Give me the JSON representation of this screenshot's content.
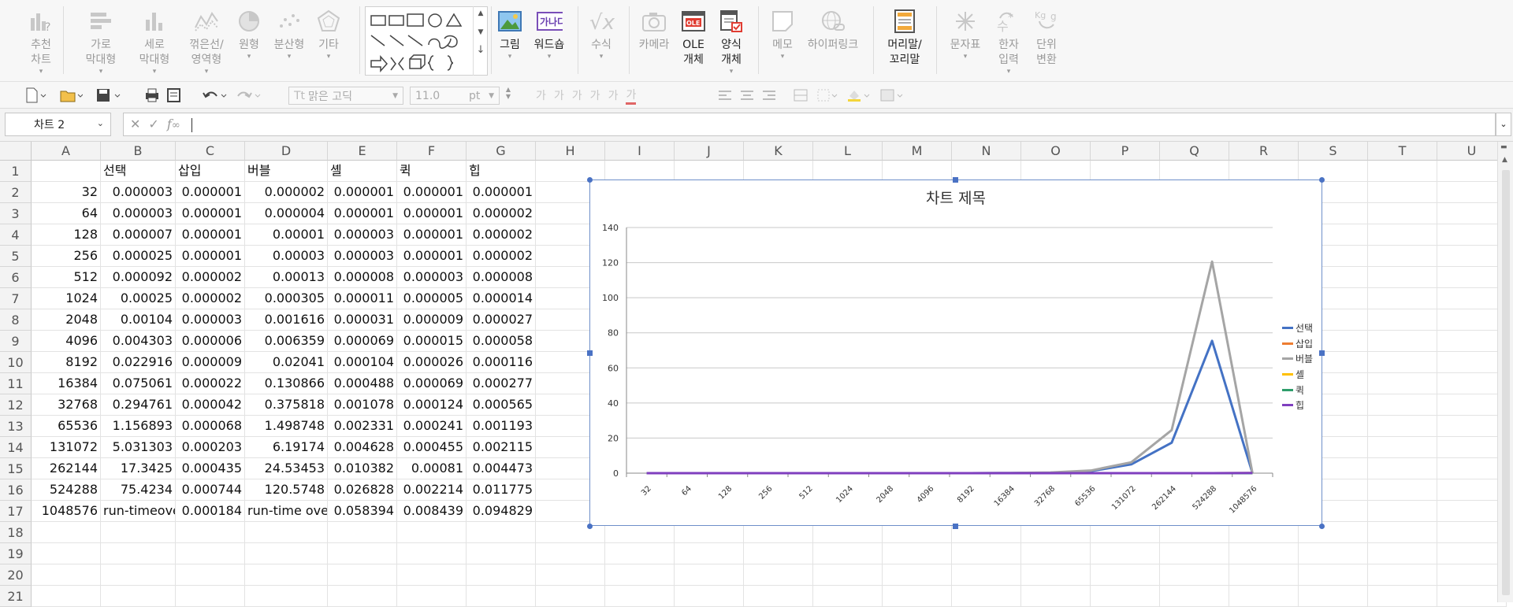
{
  "ribbon": {
    "items": [
      {
        "label": "추천\n차트",
        "icon": "recommended-chart-icon",
        "dropdown": true
      },
      {
        "label": "가로\n막대형",
        "icon": "horizontal-bar-chart-icon",
        "dropdown": true
      },
      {
        "label": "세로\n막대형",
        "icon": "vertical-bar-chart-icon",
        "dropdown": true
      },
      {
        "label": "꺾은선/\n영역형",
        "icon": "line-area-chart-icon",
        "dropdown": true
      },
      {
        "label": "원형",
        "icon": "pie-chart-icon",
        "dropdown": true
      },
      {
        "label": "분산형",
        "icon": "scatter-chart-icon",
        "dropdown": true
      },
      {
        "label": "기타",
        "icon": "other-chart-icon",
        "dropdown": true
      },
      {
        "label": "그림",
        "icon": "picture-icon",
        "dropdown": true
      },
      {
        "label": "워드숍",
        "icon": "wordart-icon",
        "dropdown": true
      },
      {
        "label": "수식",
        "icon": "equation-icon",
        "dropdown": true
      },
      {
        "label": "카메라",
        "icon": "camera-icon",
        "dropdown": false
      },
      {
        "label": "OLE\n개체",
        "icon": "ole-object-icon",
        "dropdown": false
      },
      {
        "label": "양식\n개체",
        "icon": "form-object-icon",
        "dropdown": true
      },
      {
        "label": "메모",
        "icon": "memo-icon",
        "dropdown": true
      },
      {
        "label": "하이퍼링크",
        "icon": "hyperlink-icon",
        "dropdown": false
      },
      {
        "label": "머리말/\n꼬리말",
        "icon": "header-footer-icon",
        "dropdown": false
      },
      {
        "label": "문자표",
        "icon": "symbol-icon",
        "dropdown": true
      },
      {
        "label": "한자\n입력",
        "icon": "hanja-input-icon",
        "dropdown": true
      },
      {
        "label": "단위\n변환",
        "icon": "unit-convert-icon",
        "dropdown": false
      }
    ],
    "ole_badge": "OLE",
    "wordart_badge": "가나다"
  },
  "toolbar": {
    "font_name": "맑은 고딕",
    "font_size": "11.0",
    "font_unit": "pt"
  },
  "formula_bar": {
    "name_box": "차트 2",
    "formula": ""
  },
  "columns": [
    "A",
    "B",
    "C",
    "D",
    "E",
    "F",
    "G",
    "H",
    "I",
    "J",
    "K",
    "L",
    "M",
    "N",
    "O",
    "P",
    "Q",
    "R",
    "S",
    "T",
    "U"
  ],
  "rows": [
    "1",
    "2",
    "3",
    "4",
    "5",
    "6",
    "7",
    "8",
    "9",
    "10",
    "11",
    "12",
    "13",
    "14",
    "15",
    "16",
    "17",
    "18",
    "19",
    "20",
    "21"
  ],
  "table": {
    "headers": [
      "",
      "선택",
      "삽입",
      "버블",
      "셸",
      "퀵",
      "힙"
    ],
    "data": [
      [
        "32",
        "0.000003",
        "0.000001",
        "0.000002",
        "0.000001",
        "0.000001",
        "0.000001"
      ],
      [
        "64",
        "0.000003",
        "0.000001",
        "0.000004",
        "0.000001",
        "0.000001",
        "0.000002"
      ],
      [
        "128",
        "0.000007",
        "0.000001",
        "0.00001",
        "0.000003",
        "0.000001",
        "0.000002"
      ],
      [
        "256",
        "0.000025",
        "0.000001",
        "0.00003",
        "0.000003",
        "0.000001",
        "0.000002"
      ],
      [
        "512",
        "0.000092",
        "0.000002",
        "0.00013",
        "0.000008",
        "0.000003",
        "0.000008"
      ],
      [
        "1024",
        "0.00025",
        "0.000002",
        "0.000305",
        "0.000011",
        "0.000005",
        "0.000014"
      ],
      [
        "2048",
        "0.00104",
        "0.000003",
        "0.001616",
        "0.000031",
        "0.000009",
        "0.000027"
      ],
      [
        "4096",
        "0.004303",
        "0.000006",
        "0.006359",
        "0.000069",
        "0.000015",
        "0.000058"
      ],
      [
        "8192",
        "0.022916",
        "0.000009",
        "0.02041",
        "0.000104",
        "0.000026",
        "0.000116"
      ],
      [
        "16384",
        "0.075061",
        "0.000022",
        "0.130866",
        "0.000488",
        "0.000069",
        "0.000277"
      ],
      [
        "32768",
        "0.294761",
        "0.000042",
        "0.375818",
        "0.001078",
        "0.000124",
        "0.000565"
      ],
      [
        "65536",
        "1.156893",
        "0.000068",
        "1.498748",
        "0.002331",
        "0.000241",
        "0.001193"
      ],
      [
        "131072",
        "5.031303",
        "0.000203",
        "6.19174",
        "0.004628",
        "0.000455",
        "0.002115"
      ],
      [
        "262144",
        "17.3425",
        "0.000435",
        "24.53453",
        "0.010382",
        "0.00081",
        "0.004473"
      ],
      [
        "524288",
        "75.4234",
        "0.000744",
        "120.5748",
        "0.026828",
        "0.002214",
        "0.011775"
      ],
      [
        "1048576",
        "run-timeove",
        "0.000184",
        "run-time ove",
        "0.058394",
        "0.008439",
        "0.094829"
      ]
    ]
  },
  "chart_data": {
    "type": "line",
    "title": "차트 제목",
    "categories": [
      "32",
      "64",
      "128",
      "256",
      "512",
      "1024",
      "2048",
      "4096",
      "8192",
      "16384",
      "32768",
      "65536",
      "131072",
      "262144",
      "524288",
      "1048576"
    ],
    "ylim": [
      0,
      140
    ],
    "yticks": [
      "0",
      "20",
      "40",
      "60",
      "80",
      "100",
      "120",
      "140"
    ],
    "grid": true,
    "legend_position": "right",
    "series": [
      {
        "name": "선택",
        "color": "#4472C4",
        "values": [
          3e-06,
          3e-06,
          7e-06,
          2.5e-05,
          9.2e-05,
          0.00025,
          0.00104,
          0.004303,
          0.022916,
          0.075061,
          0.294761,
          1.156893,
          5.031303,
          17.3425,
          75.4234,
          0
        ]
      },
      {
        "name": "삽입",
        "color": "#ED7D31",
        "values": [
          1e-06,
          1e-06,
          1e-06,
          1e-06,
          2e-06,
          2e-06,
          3e-06,
          6e-06,
          9e-06,
          2.2e-05,
          4.2e-05,
          6.8e-05,
          0.000203,
          0.000435,
          0.000744,
          0.000184
        ]
      },
      {
        "name": "버블",
        "color": "#A5A5A5",
        "values": [
          2e-06,
          4e-06,
          1e-05,
          3e-05,
          0.00013,
          0.000305,
          0.001616,
          0.006359,
          0.02041,
          0.130866,
          0.375818,
          1.498748,
          6.19174,
          24.53453,
          120.5748,
          0
        ]
      },
      {
        "name": "셸",
        "color": "#FFC000",
        "values": [
          1e-06,
          1e-06,
          3e-06,
          3e-06,
          8e-06,
          1.1e-05,
          3.1e-05,
          6.9e-05,
          0.000104,
          0.000488,
          0.001078,
          0.002331,
          0.004628,
          0.010382,
          0.026828,
          0.058394
        ]
      },
      {
        "name": "퀵",
        "color": "#2E9E6B",
        "values": [
          1e-06,
          1e-06,
          1e-06,
          1e-06,
          3e-06,
          5e-06,
          9e-06,
          1.5e-05,
          2.6e-05,
          6.9e-05,
          0.000124,
          0.000241,
          0.000455,
          0.00081,
          0.002214,
          0.008439
        ]
      },
      {
        "name": "힙",
        "color": "#7F3FBF",
        "values": [
          1e-06,
          2e-06,
          2e-06,
          2e-06,
          8e-06,
          1.4e-05,
          2.7e-05,
          5.8e-05,
          0.000116,
          0.000277,
          0.000565,
          0.001193,
          0.002115,
          0.004473,
          0.011775,
          0.094829
        ]
      }
    ]
  }
}
